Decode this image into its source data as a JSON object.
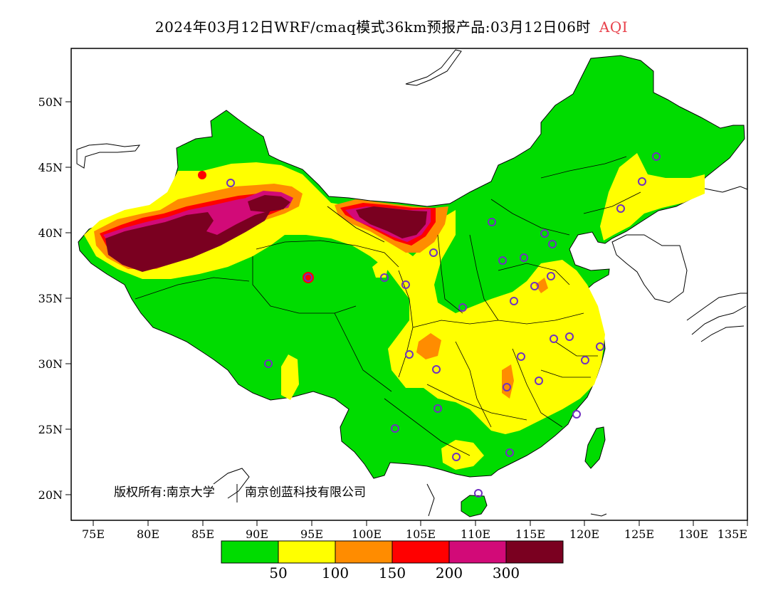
{
  "title": {
    "main": "2024年03月12日WRF/cmaq模式36km预报产品:03月12日06时",
    "variable": "AQI"
  },
  "map": {
    "lon_ticks": [
      "75E",
      "80E",
      "85E",
      "90E",
      "95E",
      "100E",
      "105E",
      "110E",
      "115E",
      "120E",
      "125E",
      "130E",
      "135E"
    ],
    "lat_ticks": [
      "20N",
      "25N",
      "30N",
      "35N",
      "40N",
      "45N",
      "50N"
    ],
    "copyright": "版权所有:南京大学",
    "copyright_org2": "南京创蓝科技有限公司",
    "station_marker_color": "#7030c0"
  },
  "legend": {
    "colors": [
      "#00dc00",
      "#ffff00",
      "#ff8c00",
      "#ff0000",
      "#d20a78",
      "#7a0020"
    ],
    "labels": [
      "50",
      "100",
      "150",
      "200",
      "300"
    ]
  }
}
